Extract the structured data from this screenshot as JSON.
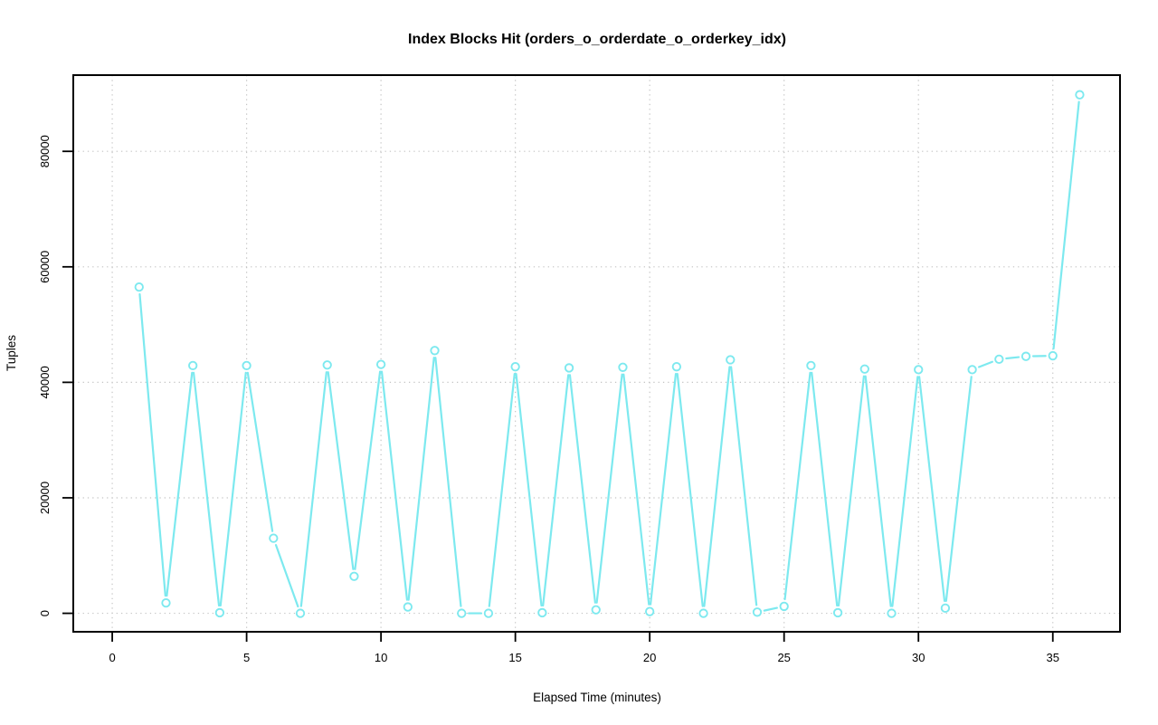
{
  "chart_data": {
    "type": "line",
    "title": "Index Blocks Hit (orders_o_orderdate_o_orderkey_idx)",
    "xlabel": "Elapsed Time (minutes)",
    "ylabel": "Tuples",
    "x": [
      1,
      2,
      3,
      4,
      5,
      6,
      7,
      8,
      9,
      10,
      11,
      12,
      13,
      14,
      15,
      16,
      17,
      18,
      19,
      20,
      21,
      22,
      23,
      24,
      25,
      26,
      27,
      28,
      29,
      30,
      31,
      32,
      33,
      34,
      35,
      36
    ],
    "values": [
      56500,
      1800,
      42900,
      100,
      42900,
      13000,
      0,
      43000,
      6400,
      43100,
      1100,
      45500,
      0,
      0,
      42700,
      100,
      42500,
      600,
      42600,
      300,
      42700,
      0,
      43900,
      200,
      1200,
      42900,
      100,
      42300,
      0,
      42200,
      900,
      42200,
      44000,
      44500,
      44600,
      89800
    ],
    "x_ticks": [
      0,
      5,
      10,
      15,
      20,
      25,
      30,
      35
    ],
    "y_ticks": [
      0,
      20000,
      40000,
      60000,
      80000
    ],
    "y_tick_labels": [
      "0",
      "20000",
      "40000",
      "60000",
      "80000"
    ],
    "xlim": [
      -1.45,
      37.5
    ],
    "ylim": [
      -3200,
      93200
    ],
    "grid": "dotted",
    "legend": "none",
    "marker": "open-circle",
    "line_style": "points-with-gapped-segments",
    "series_name": "index-blocks-hit",
    "series_color": "#7de9ef",
    "marker_fill": "#ffffff",
    "grid_color": "#c4c4c4",
    "axis_color": "#000000",
    "background_color": "#ffffff"
  }
}
